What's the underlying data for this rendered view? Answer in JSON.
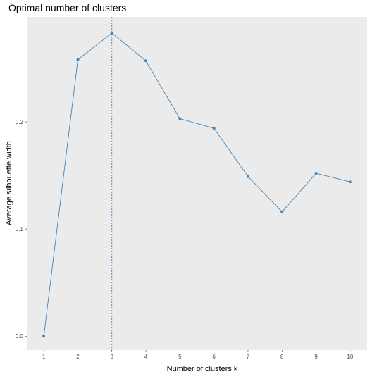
{
  "chart_data": {
    "type": "line",
    "title": "Optimal number of clusters",
    "xlabel": "Number of clusters k",
    "ylabel": "Average silhouette width",
    "x": [
      1,
      2,
      3,
      4,
      5,
      6,
      7,
      8,
      9,
      10
    ],
    "series": [
      {
        "values": [
          0.0,
          0.258,
          0.283,
          0.257,
          0.203,
          0.194,
          0.149,
          0.116,
          0.152,
          0.144
        ]
      }
    ],
    "xlim": [
      0.5,
      10.5
    ],
    "ylim": [
      -0.013,
      0.298
    ],
    "xticks": [
      "1",
      "2",
      "3",
      "4",
      "5",
      "6",
      "7",
      "8",
      "9",
      "10"
    ],
    "yticks": [
      {
        "value": 0.0,
        "label": "0.0"
      },
      {
        "value": 0.1,
        "label": "0.1"
      },
      {
        "value": 0.2,
        "label": "0.2"
      }
    ],
    "optimal_k": 3,
    "grid": false,
    "colors": {
      "panel_background": "#ebebeb",
      "line": "#4682b4",
      "point": "#4682b4",
      "vline": "#4682b4"
    }
  }
}
